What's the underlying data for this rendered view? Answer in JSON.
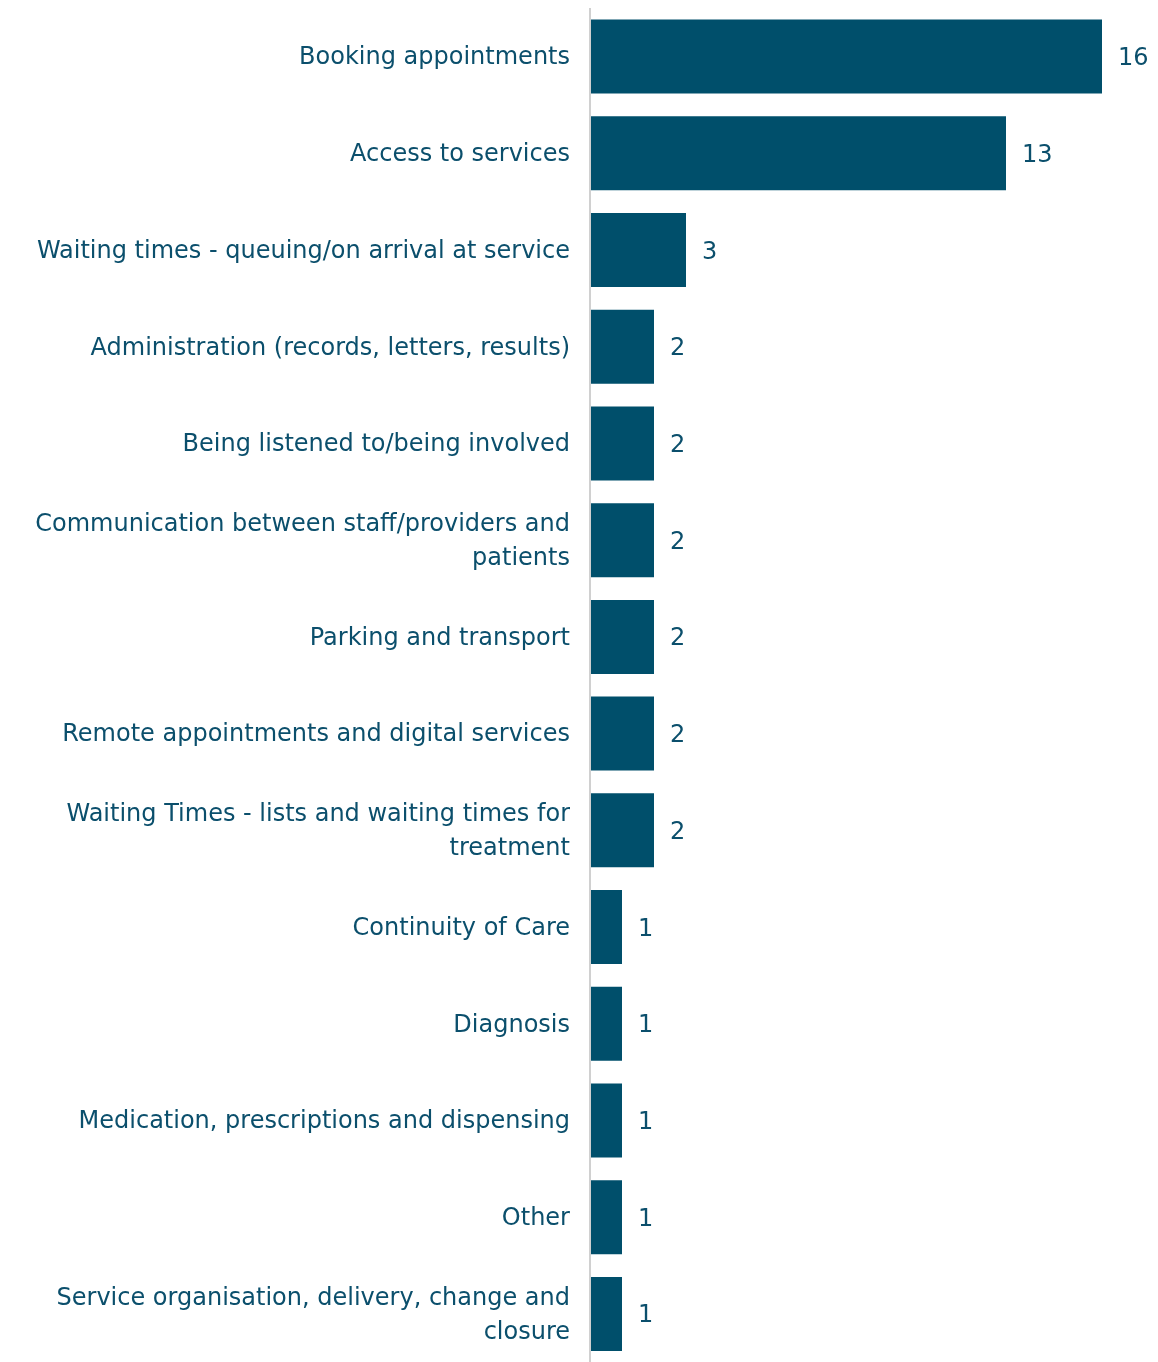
{
  "chart_data": {
    "type": "bar",
    "orientation": "horizontal",
    "categories": [
      "Booking appointments",
      "Access to services",
      "Waiting times - queuing/on arrival at service",
      "Administration (records, letters, results)",
      "Being listened to/being involved",
      "Communication between staff/providers and patients",
      "Parking and transport",
      "Remote appointments and digital services",
      "Waiting Times - lists and waiting times for treatment",
      "Continuity of Care",
      "Diagnosis",
      "Medication, prescriptions and dispensing",
      "Other",
      "Service organisation, delivery, change and closure"
    ],
    "values": [
      16,
      13,
      3,
      2,
      2,
      2,
      2,
      2,
      2,
      1,
      1,
      1,
      1,
      1
    ],
    "color": "#004f6b",
    "data_labels": true
  }
}
